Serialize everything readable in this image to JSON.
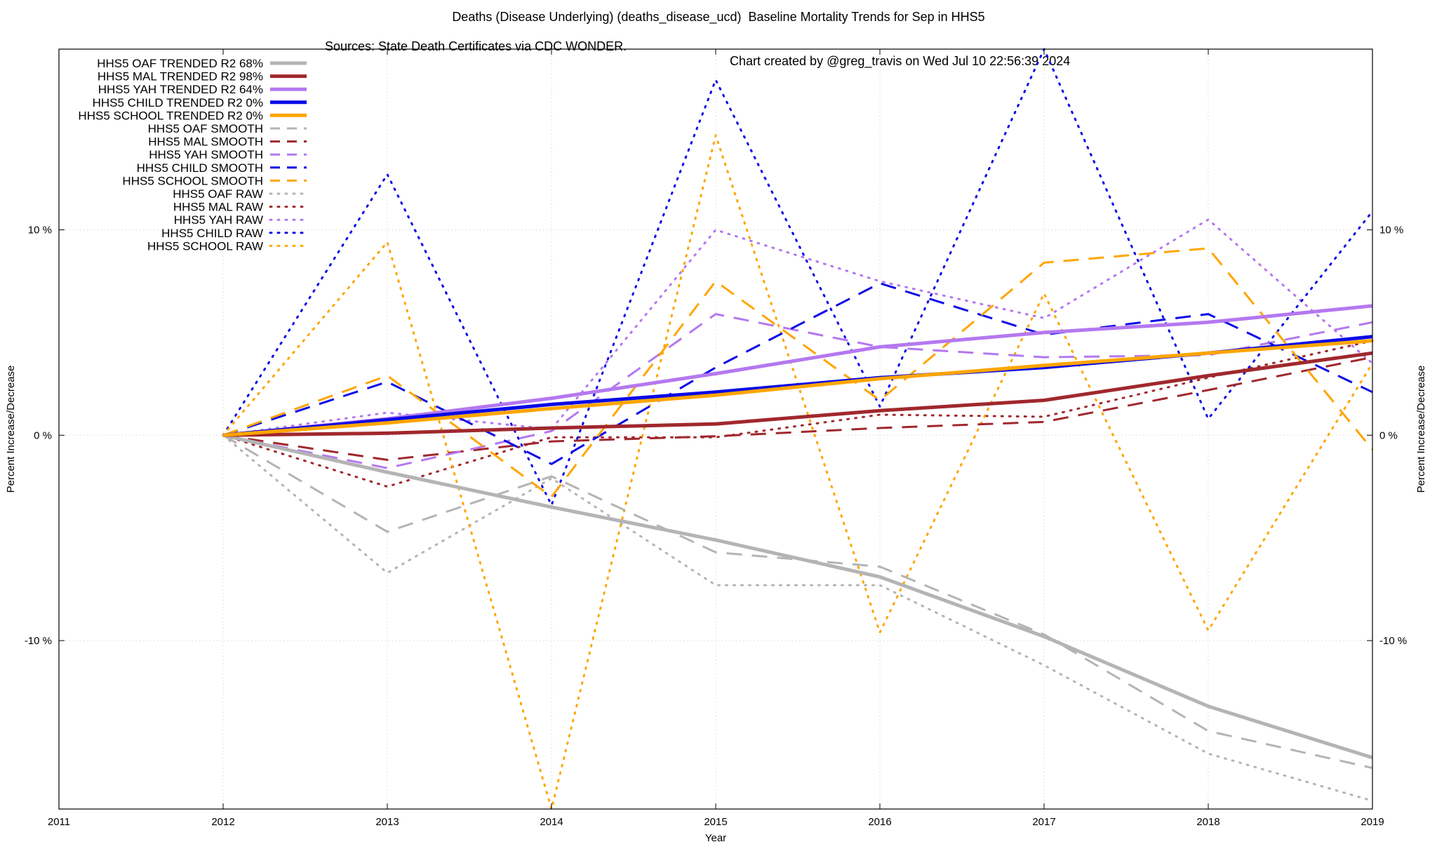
{
  "chart_data": {
    "type": "line",
    "title": "Deaths (Disease Underlying) (deaths_disease_ucd)  Baseline Mortality Trends for Sep in HHS5",
    "subtitle_left": "Sources: State Death Certificates via CDC WONDER.",
    "subtitle_right": "Chart created by @greg_travis on Wed Jul 10 22:56:39 2024",
    "xlabel": "Year",
    "ylabel": "Percent Increase/Decrease",
    "y2label": "Percent Increase/Decrease",
    "xlim": [
      2011,
      2019
    ],
    "ylim": [
      -18.2,
      18.8
    ],
    "x_ticks": [
      "2011",
      "2012",
      "2013",
      "2014",
      "2015",
      "2016",
      "2017",
      "2018",
      "2019"
    ],
    "y_ticks": [
      {
        "value": 10,
        "label": "10 %"
      },
      {
        "value": 0,
        "label": "0 %"
      },
      {
        "value": -10,
        "label": "-10 %"
      }
    ],
    "grid": true,
    "legend_position": "top-left",
    "x": [
      2012,
      2013,
      2014,
      2015,
      2016,
      2017,
      2018,
      2019
    ],
    "series": [
      {
        "name": "HHS5 OAF TRENDED R2",
        "r2": "68%",
        "color": "#b4b4b4",
        "style": "solid",
        "values": [
          0,
          -1.8,
          -3.5,
          -5.1,
          -6.9,
          -9.8,
          -13.2,
          -15.7
        ]
      },
      {
        "name": "HHS5 MAL TRENDED R2",
        "r2": "98%",
        "color": "#a0282d",
        "style": "solid",
        "values": [
          0,
          0.1,
          0.35,
          0.55,
          1.2,
          1.7,
          2.9,
          4.0
        ]
      },
      {
        "name": "HHS5 YAH TRENDED R2",
        "r2": "64%",
        "color": "#b478f0",
        "style": "solid",
        "values": [
          0,
          0.8,
          1.8,
          3.0,
          4.3,
          5.0,
          5.5,
          6.3
        ]
      },
      {
        "name": "HHS5 CHILD TRENDED R2",
        "r2": "0%",
        "color": "#0a0ae6",
        "style": "solid",
        "values": [
          0,
          0.75,
          1.5,
          2.1,
          2.8,
          3.3,
          4.0,
          4.8
        ]
      },
      {
        "name": "HHS5 SCHOOL TRENDED R2",
        "r2": "0%",
        "color": "#ffa500",
        "style": "solid",
        "values": [
          0,
          0.6,
          1.3,
          1.95,
          2.75,
          3.4,
          4.0,
          4.6
        ]
      },
      {
        "name": "HHS5 OAF SMOOTH",
        "color": "#b4b4b4",
        "style": "dashed",
        "values": [
          0,
          -4.7,
          -2.0,
          -5.7,
          -6.4,
          -9.7,
          -14.4,
          -16.2
        ]
      },
      {
        "name": "HHS5 MAL SMOOTH",
        "color": "#a0282d",
        "style": "dashed",
        "values": [
          0,
          -1.2,
          -0.3,
          -0.05,
          0.35,
          0.65,
          2.2,
          3.8
        ]
      },
      {
        "name": "HHS5 YAH SMOOTH",
        "color": "#b478f0",
        "style": "dashed",
        "values": [
          0,
          -1.6,
          0.2,
          5.9,
          4.3,
          3.8,
          3.9,
          5.5
        ]
      },
      {
        "name": "HHS5 CHILD SMOOTH",
        "color": "#0a0ae6",
        "style": "dashed",
        "values": [
          0,
          2.6,
          -1.4,
          3.3,
          7.4,
          4.9,
          5.9,
          2.1
        ]
      },
      {
        "name": "HHS5 SCHOOL SMOOTH",
        "color": "#ffa500",
        "style": "dashed",
        "values": [
          0,
          2.9,
          -3.0,
          7.5,
          1.7,
          8.4,
          9.1,
          -0.7
        ]
      },
      {
        "name": "HHS5 OAF RAW",
        "color": "#b4b4b4",
        "style": "dotted",
        "values": [
          0,
          -6.7,
          -2.1,
          -7.3,
          -7.3,
          -11.2,
          -15.5,
          -17.8
        ]
      },
      {
        "name": "HHS5 MAL RAW",
        "color": "#a0282d",
        "style": "dotted",
        "values": [
          0,
          -2.5,
          -0.1,
          -0.1,
          1.0,
          0.9,
          2.8,
          4.6
        ]
      },
      {
        "name": "HHS5 YAH RAW",
        "color": "#b478f0",
        "style": "dotted",
        "values": [
          0,
          1.1,
          0.3,
          10.0,
          7.5,
          5.7,
          10.5,
          3.5
        ]
      },
      {
        "name": "HHS5 CHILD RAW",
        "color": "#0a0ae6",
        "style": "dotted",
        "values": [
          0,
          12.7,
          -3.4,
          17.3,
          1.4,
          18.8,
          0.8,
          10.9
        ]
      },
      {
        "name": "HHS5 SCHOOL RAW",
        "color": "#ffa500",
        "style": "dotted",
        "values": [
          0,
          9.4,
          -18.2,
          14.6,
          -9.6,
          6.9,
          -9.5,
          3.5
        ]
      }
    ]
  }
}
